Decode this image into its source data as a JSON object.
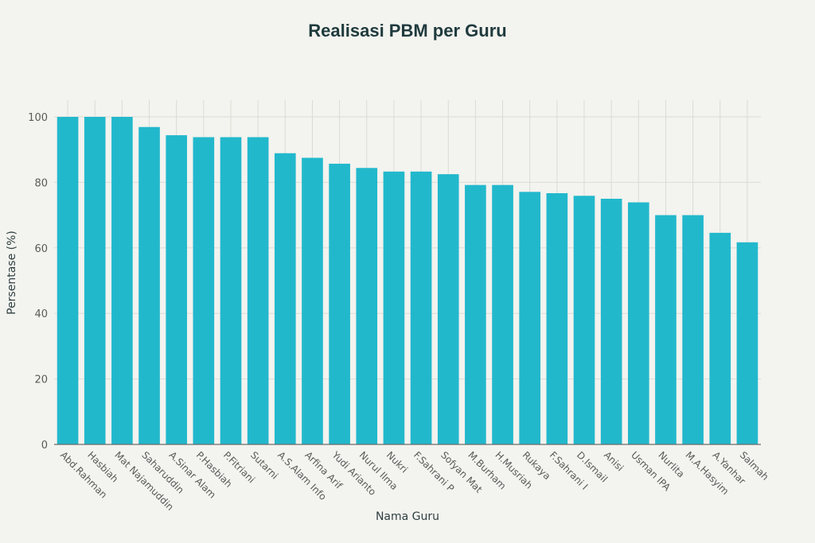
{
  "chart_data": {
    "type": "bar",
    "title": "Realisasi PBM per Guru",
    "xlabel": "Nama Guru",
    "ylabel": "Persentase (%)",
    "ylim": [
      0,
      105
    ],
    "yticks": [
      0,
      20,
      40,
      60,
      80,
      100
    ],
    "grid": true,
    "bar_color": "#22b8cc",
    "categories": [
      "Abd.Rahman",
      "Hasbiah",
      "Mat Najamuddin",
      "Saharuddin",
      "A.Sinar Alam",
      "P.Hasbiah",
      "P.Fitriani",
      "Sutarni",
      "A.S.Alam Info",
      "Arfina Arif",
      "Yudi Arianto",
      "Nurul Ilma",
      "Nukri",
      "F.Sahrani P",
      "Sofyan Mat",
      "M.Burham",
      "H.Musriah",
      "Rukaya",
      "F.Sahrani I",
      "D.Ismail",
      "Anisi",
      "Usman IPA",
      "Nurlita",
      "M.A.Hasyim",
      "A.Yanhar",
      "Salmah"
    ],
    "values": [
      100,
      100,
      100,
      96.9,
      94.4,
      93.8,
      93.8,
      93.8,
      88.9,
      87.5,
      85.7,
      84.4,
      83.3,
      83.3,
      82.5,
      79.2,
      79.2,
      77.1,
      76.7,
      75.9,
      75.0,
      73.9,
      70.0,
      70.0,
      64.6,
      61.7
    ]
  }
}
